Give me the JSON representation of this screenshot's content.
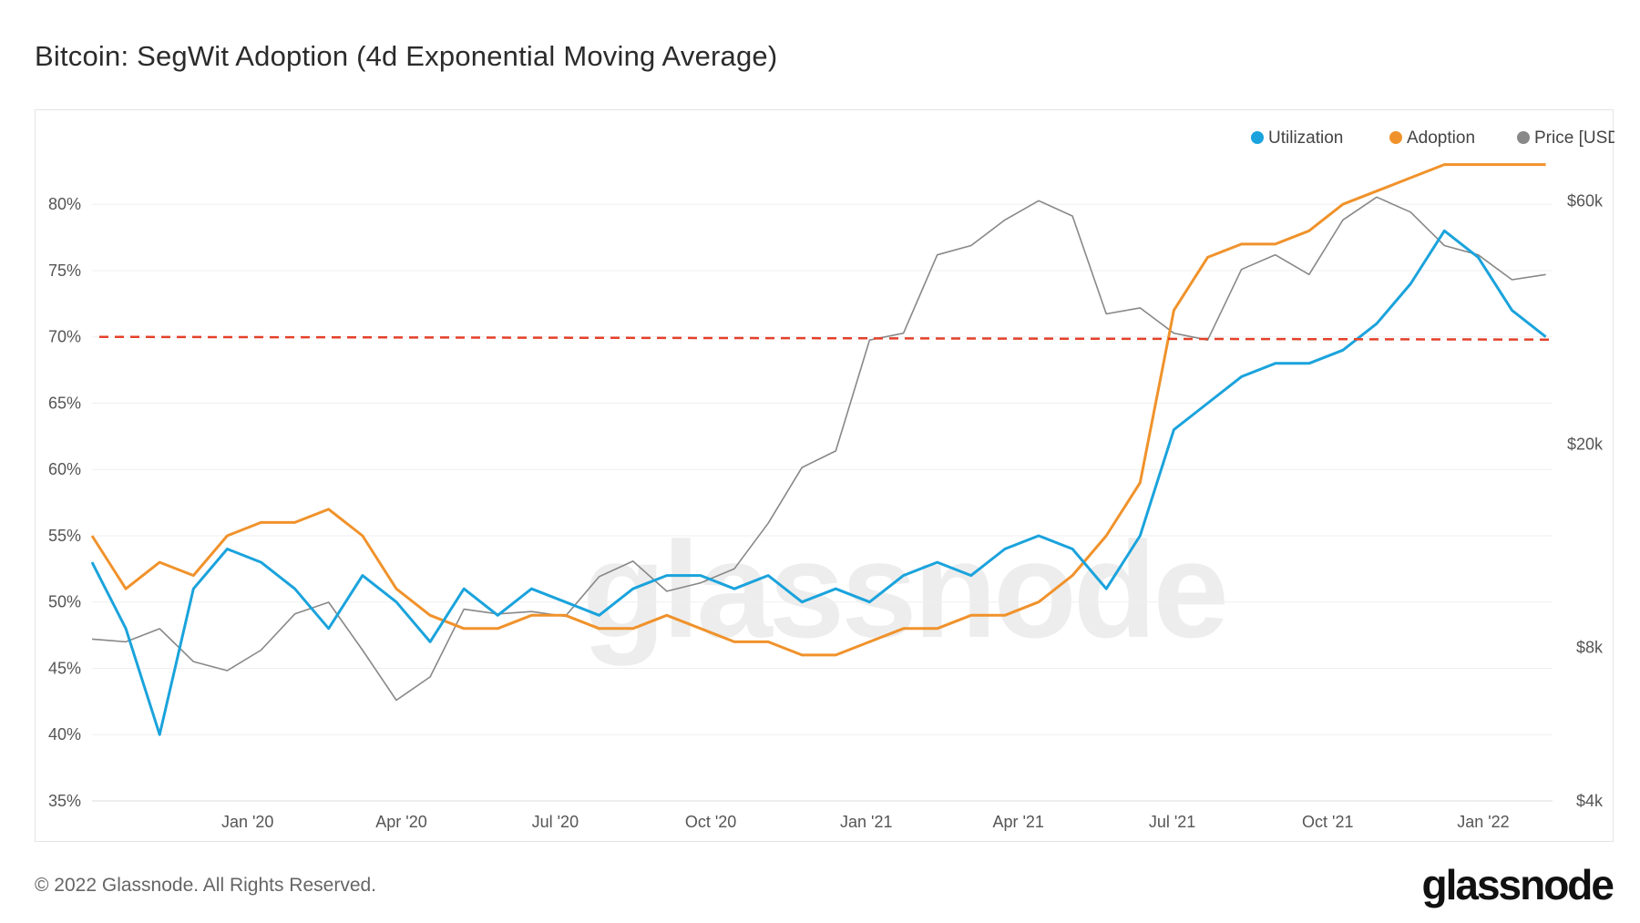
{
  "title": "Bitcoin: SegWit Adoption (4d Exponential Moving Average)",
  "footer": "© 2022 Glassnode. All Rights Reserved.",
  "brand": "glassnode",
  "watermark": "glassnode",
  "chart_data": {
    "type": "line",
    "title": "Bitcoin: SegWit Adoption (4d Exponential Moving Average)",
    "x_ticks": [
      "Jan '20",
      "Apr '20",
      "Jul '20",
      "Oct '20",
      "Jan '21",
      "Apr '21",
      "Jul '21",
      "Oct '21",
      "Jan '22"
    ],
    "y_left": {
      "ticks": [
        "35%",
        "40%",
        "45%",
        "50%",
        "55%",
        "60%",
        "65%",
        "70%",
        "75%",
        "80%"
      ],
      "range": [
        35,
        84
      ]
    },
    "y_right": {
      "ticks": [
        "$4k",
        "$8k",
        "$20k",
        "$60k"
      ],
      "scale": "log",
      "range": [
        4000,
        75000
      ]
    },
    "reference_line": {
      "value": 70,
      "style": "dashed",
      "color": "#e4402a"
    },
    "legend": {
      "placement": "top-right"
    },
    "series": [
      {
        "name": "Utilization",
        "axis": "left",
        "color": "#1aa3dc",
        "dates": [
          "2019-10-01",
          "2019-10-21",
          "2019-11-10",
          "2019-11-30",
          "2019-12-20",
          "2020-01-09",
          "2020-01-29",
          "2020-02-18",
          "2020-03-09",
          "2020-03-29",
          "2020-04-18",
          "2020-05-08",
          "2020-05-28",
          "2020-06-17",
          "2020-07-07",
          "2020-07-27",
          "2020-08-16",
          "2020-09-05",
          "2020-09-25",
          "2020-10-15",
          "2020-11-04",
          "2020-11-24",
          "2020-12-14",
          "2021-01-03",
          "2021-01-23",
          "2021-02-12",
          "2021-03-04",
          "2021-03-24",
          "2021-04-13",
          "2021-05-03",
          "2021-05-23",
          "2021-06-12",
          "2021-07-02",
          "2021-07-22",
          "2021-08-11",
          "2021-08-31",
          "2021-09-20",
          "2021-10-10",
          "2021-10-30",
          "2021-11-19",
          "2021-12-09",
          "2021-12-29",
          "2022-01-18",
          "2022-02-07"
        ],
        "values": [
          53,
          48,
          40,
          51,
          54,
          53,
          51,
          48,
          52,
          50,
          47,
          51,
          49,
          51,
          50,
          49,
          51,
          52,
          52,
          51,
          52,
          50,
          51,
          50,
          52,
          53,
          52,
          54,
          55,
          54,
          51,
          55,
          63,
          65,
          67,
          68,
          68,
          69,
          71,
          74,
          78,
          76,
          72,
          70
        ]
      },
      {
        "name": "Adoption",
        "axis": "left",
        "color": "#f0922b",
        "dates": [
          "2019-10-01",
          "2019-10-21",
          "2019-11-10",
          "2019-11-30",
          "2019-12-20",
          "2020-01-09",
          "2020-01-29",
          "2020-02-18",
          "2020-03-09",
          "2020-03-29",
          "2020-04-18",
          "2020-05-08",
          "2020-05-28",
          "2020-06-17",
          "2020-07-07",
          "2020-07-27",
          "2020-08-16",
          "2020-09-05",
          "2020-09-25",
          "2020-10-15",
          "2020-11-04",
          "2020-11-24",
          "2020-12-14",
          "2021-01-03",
          "2021-01-23",
          "2021-02-12",
          "2021-03-04",
          "2021-03-24",
          "2021-04-13",
          "2021-05-03",
          "2021-05-23",
          "2021-06-12",
          "2021-07-02",
          "2021-07-22",
          "2021-08-11",
          "2021-08-31",
          "2021-09-20",
          "2021-10-10",
          "2021-10-30",
          "2021-11-19",
          "2021-12-09",
          "2021-12-29",
          "2022-01-18",
          "2022-02-07"
        ],
        "values": [
          55,
          51,
          53,
          52,
          55,
          56,
          56,
          57,
          55,
          51,
          49,
          48,
          48,
          49,
          49,
          48,
          48,
          49,
          48,
          47,
          47,
          46,
          46,
          47,
          48,
          48,
          49,
          49,
          50,
          52,
          55,
          59,
          72,
          76,
          77,
          77,
          78,
          80,
          81,
          82,
          83,
          83,
          83,
          83
        ]
      },
      {
        "name": "Price [USD]",
        "axis": "right",
        "color": "#888888",
        "dates": [
          "2019-10-01",
          "2019-10-21",
          "2019-11-10",
          "2019-11-30",
          "2019-12-20",
          "2020-01-09",
          "2020-01-29",
          "2020-02-18",
          "2020-03-09",
          "2020-03-29",
          "2020-04-18",
          "2020-05-08",
          "2020-05-28",
          "2020-06-17",
          "2020-07-07",
          "2020-07-27",
          "2020-08-16",
          "2020-09-05",
          "2020-09-25",
          "2020-10-15",
          "2020-11-04",
          "2020-11-24",
          "2020-12-14",
          "2021-01-03",
          "2021-01-23",
          "2021-02-12",
          "2021-03-04",
          "2021-03-24",
          "2021-04-13",
          "2021-05-03",
          "2021-05-23",
          "2021-06-12",
          "2021-07-02",
          "2021-07-22",
          "2021-08-11",
          "2021-08-31",
          "2021-09-20",
          "2021-10-10",
          "2021-10-30",
          "2021-11-19",
          "2021-12-09",
          "2021-12-29",
          "2022-01-18",
          "2022-02-07"
        ],
        "values": [
          8300,
          8200,
          8700,
          7500,
          7200,
          7900,
          9300,
          9800,
          7900,
          6300,
          7000,
          9500,
          9300,
          9400,
          9200,
          11000,
          11800,
          10300,
          10700,
          11400,
          14000,
          18000,
          19400,
          32000,
          33000,
          47000,
          49000,
          55000,
          60000,
          56000,
          36000,
          37000,
          33000,
          32000,
          44000,
          47000,
          43000,
          55000,
          61000,
          57000,
          49000,
          47000,
          42000,
          43000
        ]
      }
    ]
  }
}
